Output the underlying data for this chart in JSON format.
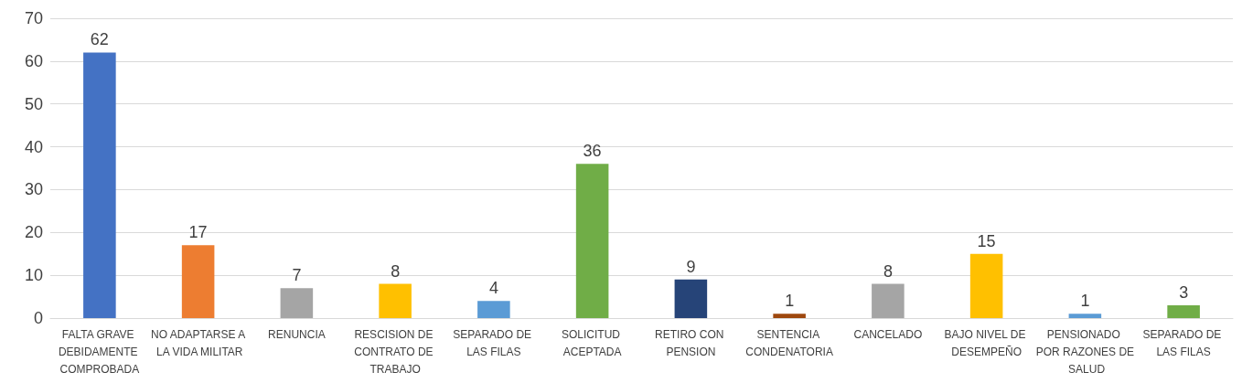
{
  "chart_data": {
    "type": "bar",
    "categories": [
      "FALTA GRAVE DEBIDAMENTE COMPROBADA",
      "NO ADAPTARSE A LA VIDA MILITAR",
      "RENUNCIA",
      "RESCISION DE CONTRATO DE TRABAJO",
      "SEPARADO DE LAS FILAS",
      "SOLICITUD ACEPTADA",
      "RETIRO CON PENSION",
      "SENTENCIA CONDENATORIA",
      "CANCELADO",
      "BAJO NIVEL DE DESEMPEÑO",
      "PENSIONADO POR RAZONES DE SALUD",
      "SEPARADO DE LAS FILAS"
    ],
    "values": [
      62,
      17,
      7,
      8,
      4,
      36,
      9,
      1,
      8,
      15,
      1,
      3
    ],
    "colors": [
      "#4472c4",
      "#ed7d31",
      "#a5a5a5",
      "#ffc000",
      "#5b9bd5",
      "#70ad47",
      "#264478",
      "#9e480e",
      "#a5a5a5",
      "#ffc000",
      "#5b9bd5",
      "#70ad47"
    ],
    "ylim": [
      0,
      70
    ],
    "yticks": [
      0,
      10,
      20,
      30,
      40,
      50,
      60,
      70
    ],
    "grid": "y",
    "data_labels": true
  }
}
